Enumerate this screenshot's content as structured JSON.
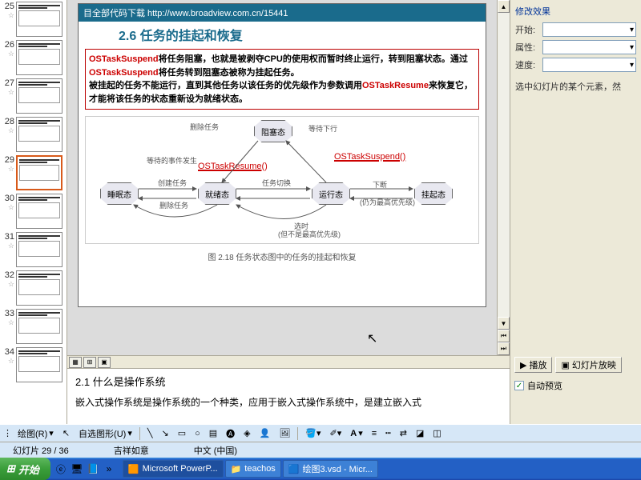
{
  "thumbnails": [
    {
      "num": 25
    },
    {
      "num": 26
    },
    {
      "num": 27
    },
    {
      "num": 28
    },
    {
      "num": 29,
      "active": true
    },
    {
      "num": 30
    },
    {
      "num": 31
    },
    {
      "num": 32
    },
    {
      "num": 33
    },
    {
      "num": 34
    }
  ],
  "slide": {
    "header": "目全部代码下载 http://www.broadview.com.cn/15441",
    "section_title": "2.6 任务的挂起和恢复",
    "body_p1a": "将任务阻塞，也就是被剥夺CPU的使用权而暂时终止运行，转到阻塞状态。通过",
    "body_p1b": "将任务转到阻塞态被称为挂起任务。",
    "body_p2a": "被挂起的任务不能运行，直到其他任务以该任务的优先级作为参数调用",
    "body_p2b": "来恢复它，才能将该任务的状态重新设为就绪状态。",
    "fn_suspend": "OSTaskSuspend",
    "fn_resume": "OSTaskResume",
    "states": {
      "blocked": "阻塞态",
      "sleep": "睡眠态",
      "ready": "就绪态",
      "running": "运行态",
      "suspend": "挂起态"
    },
    "labels": {
      "suspend_fn": "OSTaskSuspend()",
      "resume_fn": "OSTaskResume()",
      "l1": "删除任务",
      "l2": "等待的事件发生",
      "l3": "等待下行",
      "l4": "创建任务",
      "l5": "任务切换",
      "l6": "下断",
      "l7": "删除任务",
      "l8": "(仍为最高优先级)",
      "l9": "选时",
      "l10": "(但不是最高优先级)"
    },
    "caption": "图 2.18 任务状态图中的任务的挂起和恢复"
  },
  "notes": {
    "title": "2.1 什么是操作系统",
    "body": "嵌入式操作系统是操作系统的一个种类，应用于嵌入式操作系统中，是建立嵌入式"
  },
  "right_panel": {
    "title": "修改效果",
    "rows": [
      {
        "label": "开始",
        "value": ""
      },
      {
        "label": "属性",
        "value": ""
      },
      {
        "label": "速度",
        "value": ""
      }
    ],
    "hint": "选中幻灯片的某个元素，然",
    "play_btn": "播放",
    "slideshow_btn": "幻灯片放映",
    "auto_preview": "自动预览"
  },
  "toolbar": {
    "draw_menu": "绘图(R)",
    "autoshape": "自选图形(U)"
  },
  "status": {
    "slide_info": "幻灯片 29 / 36",
    "theme": "吉祥如意",
    "lang": "中文 (中国)"
  },
  "taskbar": {
    "start": "开始",
    "items": [
      {
        "icon": "🟧",
        "label": "Microsoft PowerP...",
        "active": true
      },
      {
        "icon": "📁",
        "label": "teachos"
      },
      {
        "icon": "🟦",
        "label": "绘图3.vsd - Micr..."
      }
    ]
  }
}
